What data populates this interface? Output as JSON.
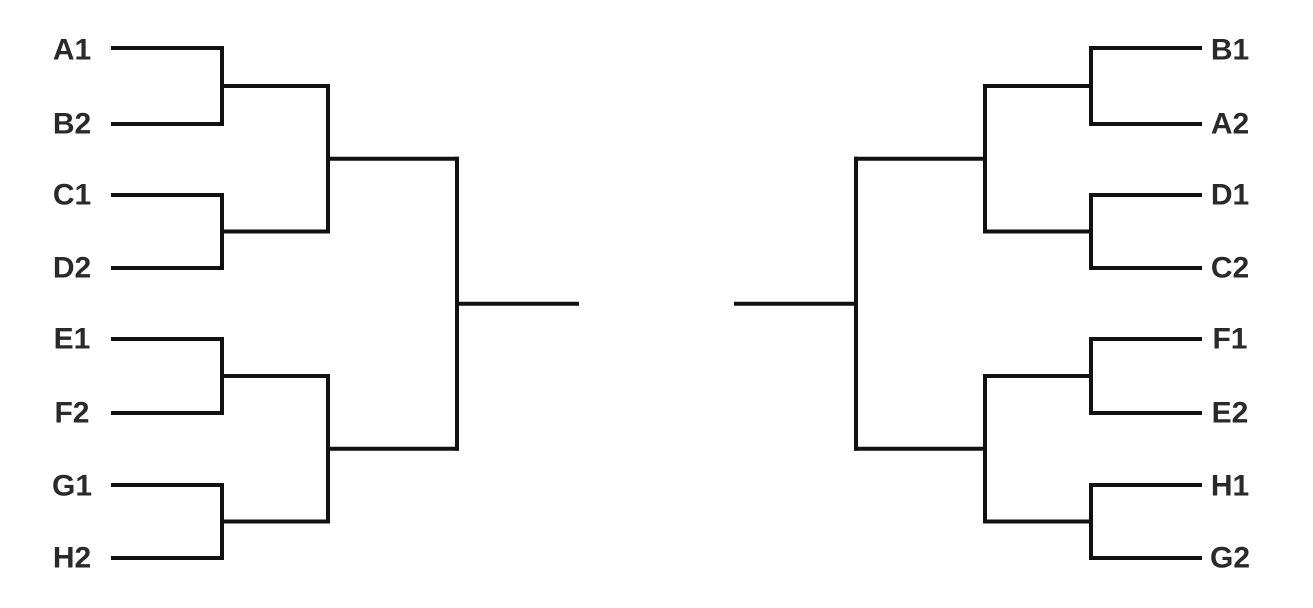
{
  "bracket": {
    "line_color": "#111111",
    "text_color": "#2a2a2a",
    "left_teams": [
      "A1",
      "B2",
      "C1",
      "D2",
      "E1",
      "F2",
      "G1",
      "H2"
    ],
    "right_teams": [
      "B1",
      "A2",
      "D1",
      "C2",
      "F1",
      "E2",
      "H1",
      "G2"
    ]
  }
}
